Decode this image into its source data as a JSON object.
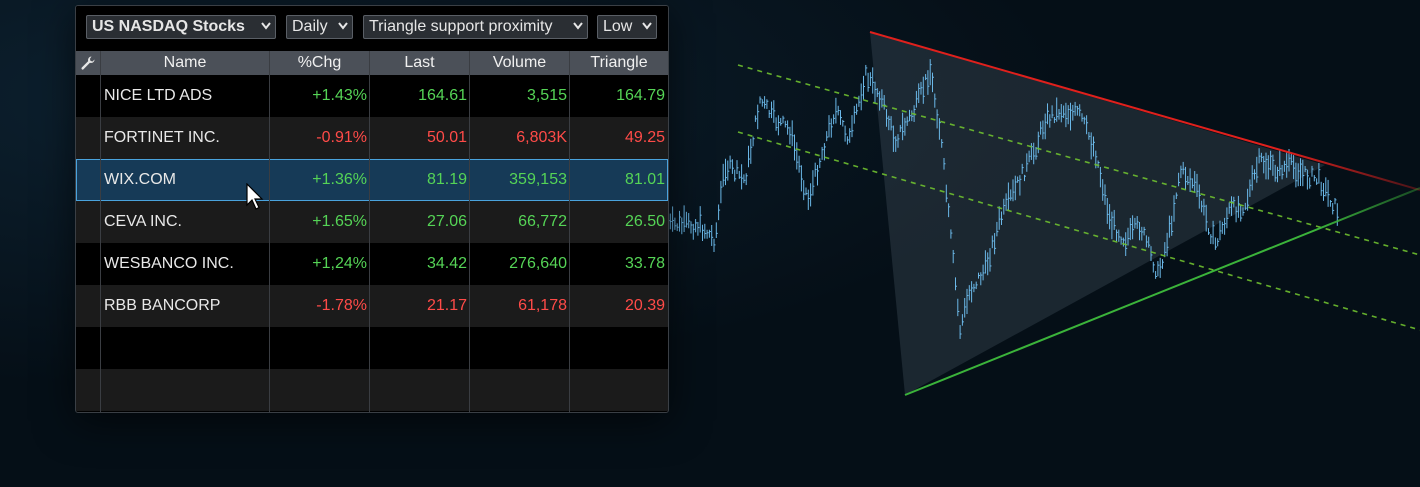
{
  "toolbar": {
    "market": "US NASDAQ Stocks",
    "interval": "Daily",
    "scan": "Triangle support proximity",
    "price_field": "Low"
  },
  "columns": [
    "Name",
    "%Chg",
    "Last",
    "Volume",
    "Triangle"
  ],
  "rows": [
    {
      "name": "NICE LTD ADS",
      "chg": "+1.43%",
      "last": "164.61",
      "volume": "3,515",
      "triangle": "164.79",
      "dir": "up"
    },
    {
      "name": "FORTINET INC.",
      "chg": "-0.91%",
      "last": "50.01",
      "volume": "6,803K",
      "triangle": "49.25",
      "dir": "dn"
    },
    {
      "name": "WIX.COM",
      "chg": "+1.36%",
      "last": "81.19",
      "volume": "359,153",
      "triangle": "81.01",
      "dir": "up"
    },
    {
      "name": "CEVA INC.",
      "chg": "+1.65%",
      "last": "27.06",
      "volume": "66,772",
      "triangle": "26.50",
      "dir": "up"
    },
    {
      "name": "WESBANCO INC.",
      "chg": "+1,24%",
      "last": "34.42",
      "volume": "276,640",
      "triangle": "33.78",
      "dir": "up"
    },
    {
      "name": "RBB BANCORP",
      "chg": "-1.78%",
      "last": "21.17",
      "volume": "61,178",
      "triangle": "20.39",
      "dir": "dn"
    }
  ],
  "selected_row": 2,
  "colors": {
    "up": "#55d456",
    "down": "#ff4b48",
    "resistance_line": "#e0201c",
    "support_line": "#3bb33a",
    "channel_line": "#6fc02f",
    "price_bars": "#6bb8e8",
    "background": "#07131d"
  },
  "icons": {
    "settings": "wrench-icon",
    "dropdown": "chevron-down-icon",
    "pointer": "mouse-cursor-icon"
  }
}
